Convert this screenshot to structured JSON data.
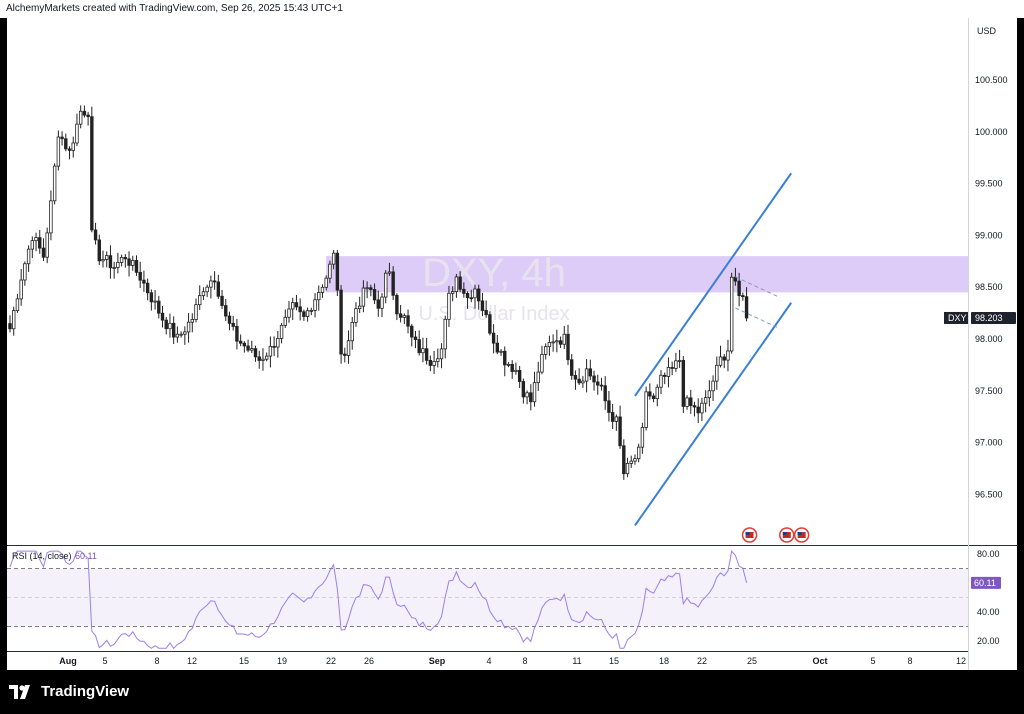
{
  "header": {
    "attribution": "AlchemyMarkets created with TradingView.com, Sep 26, 2025 15:43 UTC+1"
  },
  "watermark": {
    "symbol": "DXY, 4h",
    "name": "U.S. Dollar Index"
  },
  "brand": {
    "name": "TradingView"
  },
  "colors": {
    "up": "#ffffff",
    "candle_border": "#222222",
    "zone": "#d8c3f7",
    "channel": "#3a7fd6",
    "rsi": "#9c7ef0",
    "price_tag": "#1e222d",
    "rsi_tag": "#7e57c2"
  },
  "price_scale": {
    "currency": "USD",
    "labels": [
      "100.500",
      "100.000",
      "99.500",
      "99.000",
      "98.500",
      "98.000",
      "97.500",
      "97.000",
      "96.500"
    ]
  },
  "price_tag": {
    "symbol": "DXY",
    "value": "98.203"
  },
  "rsi": {
    "label": "RSI (14, close)",
    "value": "60.11",
    "scale_labels": [
      "80.00",
      "40.00",
      "20.00"
    ]
  },
  "time_axis": [
    {
      "label": "Aug",
      "bold": true
    },
    {
      "label": "5"
    },
    {
      "label": "8"
    },
    {
      "label": "12"
    },
    {
      "label": "15"
    },
    {
      "label": "19"
    },
    {
      "label": "22"
    },
    {
      "label": "26"
    },
    {
      "label": "Sep",
      "bold": true
    },
    {
      "label": "4"
    },
    {
      "label": "8"
    },
    {
      "label": "11"
    },
    {
      "label": "15"
    },
    {
      "label": "18"
    },
    {
      "label": "22"
    },
    {
      "label": "25"
    },
    {
      "label": "Oct",
      "bold": true
    },
    {
      "label": "5"
    },
    {
      "label": "8"
    },
    {
      "label": "12"
    }
  ],
  "chart_data": {
    "type": "candlestick",
    "symbol": "DXY",
    "interval": "4h",
    "ylim": [
      96.0,
      101.2
    ],
    "last_price": 98.203,
    "anchor_points": [
      [
        0,
        98.1
      ],
      [
        3,
        98.6
      ],
      [
        6,
        99.0
      ],
      [
        9,
        98.8
      ],
      [
        11,
        99.3
      ],
      [
        13,
        100.0
      ],
      [
        16,
        99.8
      ],
      [
        19,
        100.2
      ],
      [
        21,
        100.2
      ],
      [
        22,
        99.0
      ],
      [
        24,
        98.8
      ],
      [
        28,
        98.7
      ],
      [
        31,
        98.8
      ],
      [
        35,
        98.6
      ],
      [
        38,
        98.4
      ],
      [
        41,
        98.2
      ],
      [
        45,
        98.0
      ],
      [
        49,
        98.2
      ],
      [
        52,
        98.5
      ],
      [
        55,
        98.6
      ],
      [
        58,
        98.2
      ],
      [
        61,
        98.0
      ],
      [
        64,
        97.9
      ],
      [
        67,
        97.8
      ],
      [
        70,
        97.9
      ],
      [
        73,
        98.1
      ],
      [
        76,
        98.3
      ],
      [
        79,
        98.2
      ],
      [
        82,
        98.4
      ],
      [
        85,
        98.6
      ],
      [
        87,
        98.8
      ],
      [
        88,
        98.5
      ],
      [
        89,
        97.8
      ],
      [
        91,
        98.0
      ],
      [
        93,
        98.3
      ],
      [
        96,
        98.5
      ],
      [
        99,
        98.3
      ],
      [
        101,
        98.6
      ],
      [
        102,
        98.6
      ],
      [
        104,
        98.3
      ],
      [
        106,
        98.2
      ],
      [
        108,
        98.0
      ],
      [
        110,
        97.9
      ],
      [
        113,
        97.8
      ],
      [
        116,
        97.9
      ],
      [
        118,
        98.4
      ],
      [
        120,
        98.6
      ],
      [
        123,
        98.4
      ],
      [
        125,
        98.5
      ],
      [
        127,
        98.3
      ],
      [
        130,
        98.0
      ],
      [
        133,
        97.8
      ],
      [
        136,
        97.7
      ],
      [
        138,
        97.5
      ],
      [
        140,
        97.4
      ],
      [
        142,
        97.7
      ],
      [
        144,
        97.9
      ],
      [
        146,
        98.0
      ],
      [
        149,
        98.0
      ],
      [
        151,
        97.7
      ],
      [
        153,
        97.6
      ],
      [
        155,
        97.7
      ],
      [
        157,
        97.6
      ],
      [
        159,
        97.5
      ],
      [
        161,
        97.3
      ],
      [
        163,
        97.2
      ],
      [
        165,
        96.7
      ],
      [
        167,
        96.8
      ],
      [
        169,
        96.9
      ],
      [
        170,
        97.1
      ],
      [
        171,
        97.5
      ],
      [
        173,
        97.4
      ],
      [
        175,
        97.6
      ],
      [
        178,
        97.7
      ],
      [
        180,
        97.8
      ],
      [
        181,
        97.4
      ],
      [
        183,
        97.35
      ],
      [
        185,
        97.3
      ],
      [
        187,
        97.4
      ],
      [
        189,
        97.6
      ],
      [
        191,
        97.8
      ],
      [
        193,
        97.9
      ],
      [
        194,
        98.6
      ],
      [
        195,
        98.5
      ],
      [
        196,
        98.4
      ],
      [
        197,
        98.45
      ],
      [
        198,
        98.2
      ]
    ],
    "rsi": {
      "period": 14,
      "last": 60.11,
      "ylim": [
        10,
        85
      ],
      "levels": [
        70,
        50,
        30
      ]
    },
    "resistance_zone": {
      "y_top": 98.8,
      "y_bottom": 98.45,
      "from_index": 85
    },
    "channel": {
      "upper": [
        [
          168,
          97.45
        ],
        [
          210,
          99.6
        ]
      ],
      "lower": [
        [
          168,
          96.2
        ],
        [
          210,
          98.35
        ]
      ]
    },
    "flag": {
      "upper": [
        [
          195,
          98.6
        ],
        [
          207,
          98.4
        ]
      ],
      "lower": [
        [
          195,
          98.3
        ],
        [
          207,
          98.1
        ]
      ]
    },
    "events": [
      {
        "index": 198
      },
      {
        "index": 208
      },
      {
        "index": 212
      }
    ]
  }
}
